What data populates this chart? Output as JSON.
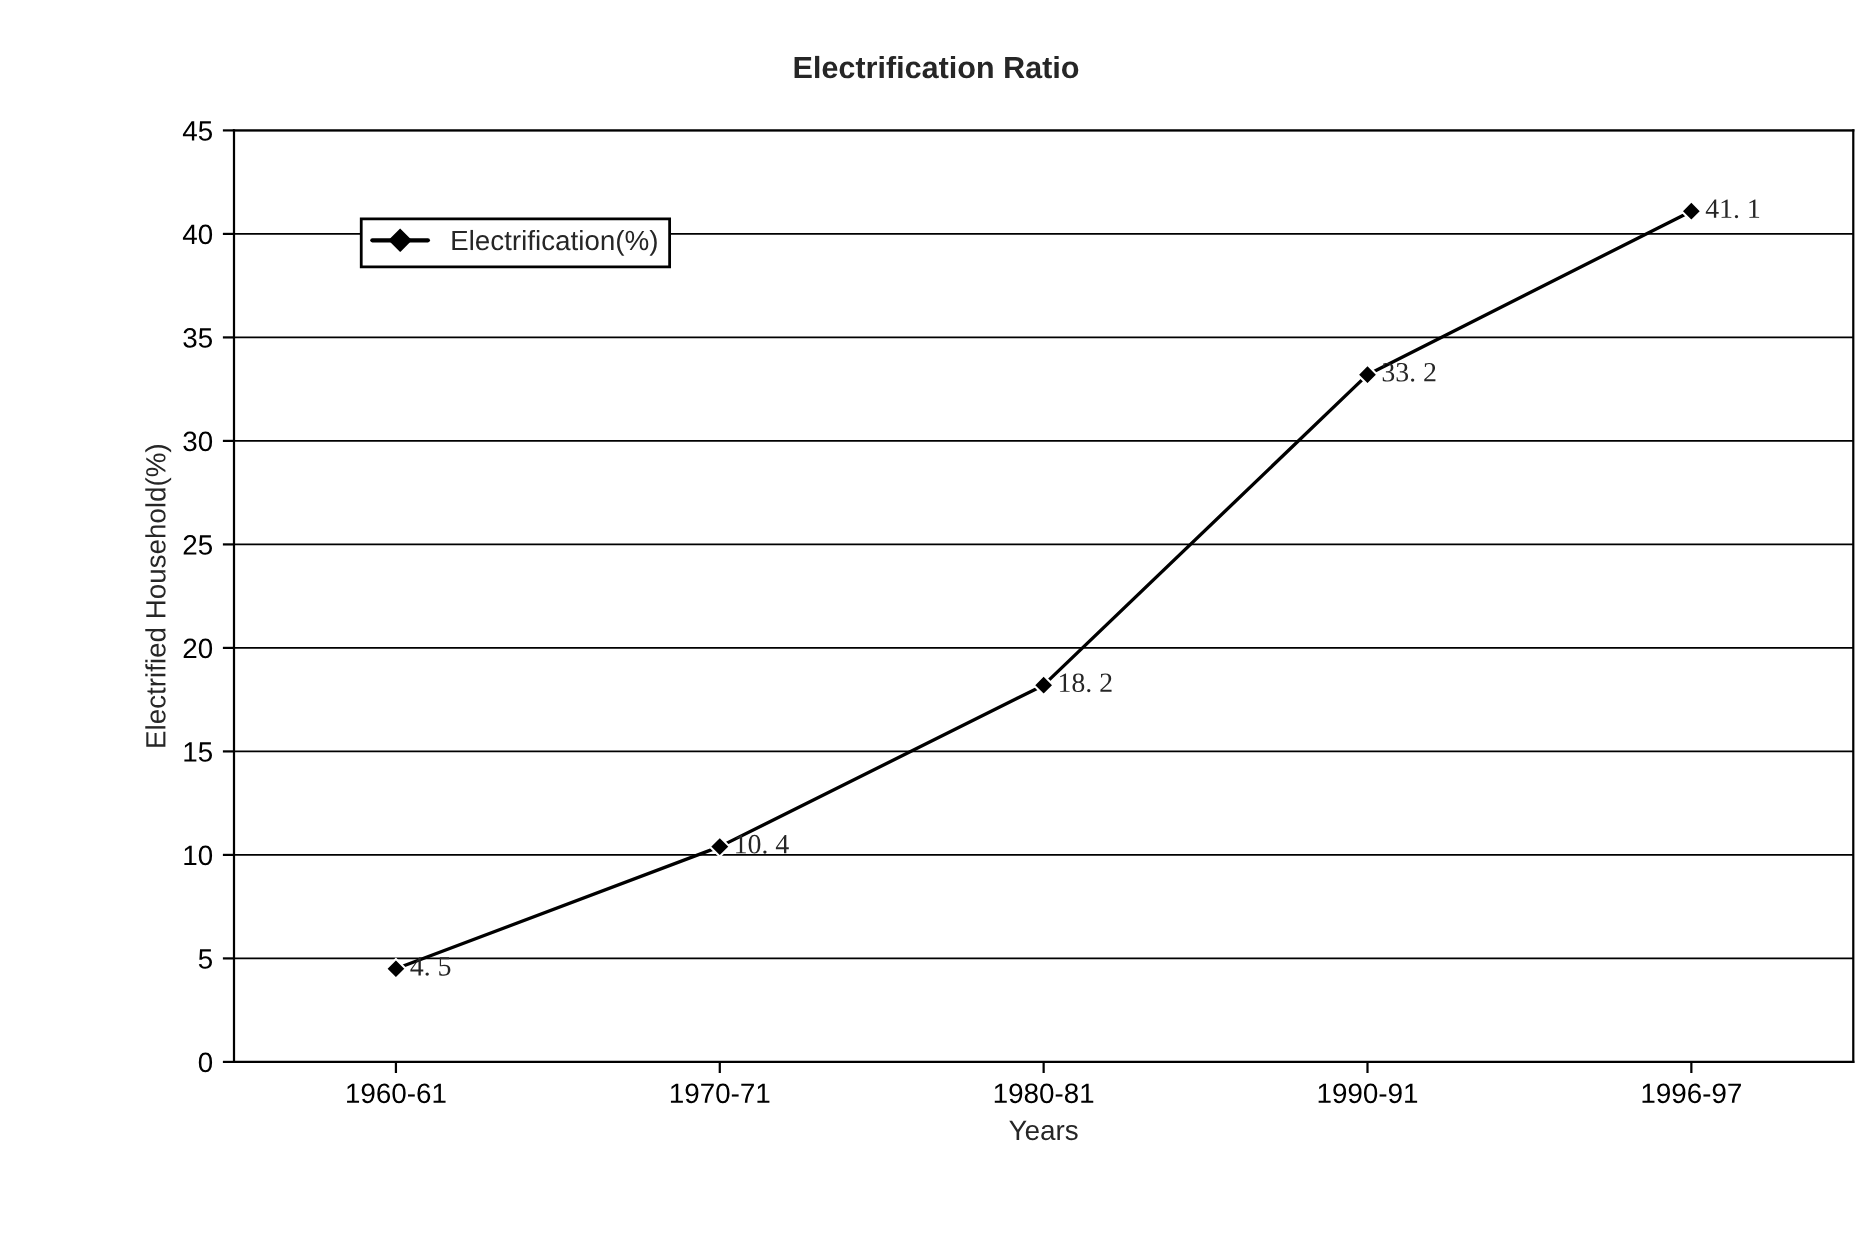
{
  "chart_data": {
    "type": "line",
    "title": "Electrification Ratio",
    "xlabel": "Years",
    "ylabel": "Electrified Household(%)",
    "categories": [
      "1960-61",
      "1970-71",
      "1980-81",
      "1990-91",
      "1996-97"
    ],
    "series": [
      {
        "name": "Electrification(%)",
        "color": "#000000",
        "values": [
          4.5,
          10.4,
          18.2,
          33.2,
          41.1
        ],
        "value_labels": [
          "4. 5",
          "10. 4",
          "18. 2",
          "33. 2",
          "41. 1"
        ]
      }
    ],
    "ylim": [
      0,
      45
    ],
    "yticks": [
      0,
      5,
      10,
      15,
      20,
      25,
      30,
      35,
      40,
      45
    ],
    "grid": "y",
    "legend": "top left",
    "marker": "diamond",
    "line_style": "solid"
  }
}
